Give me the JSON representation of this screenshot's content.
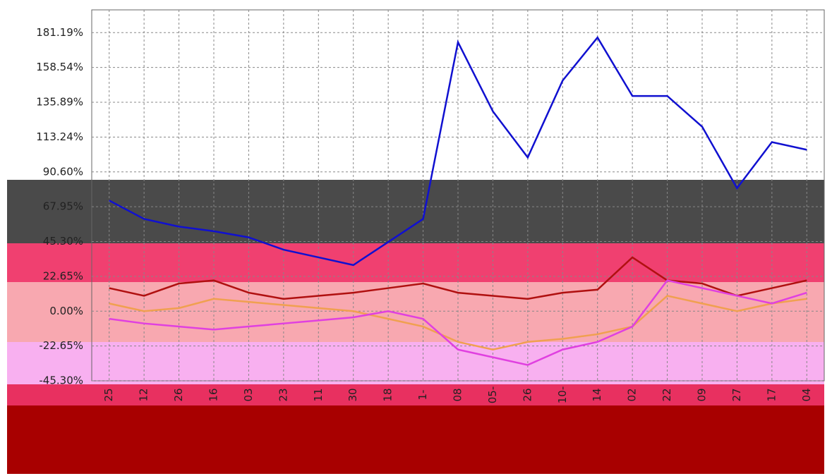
{
  "chart_data": {
    "type": "line",
    "categories": [
      "25",
      "12",
      "26",
      "16",
      "03",
      "23",
      "11",
      "30",
      "18",
      "1-",
      "08",
      "05-",
      "26",
      "10-",
      "14",
      "02",
      "22",
      "09",
      "27",
      "17",
      "04"
    ],
    "series": [
      {
        "color": "#1010d0",
        "values": [
          72,
          60,
          55,
          52,
          48,
          40,
          35,
          30,
          45,
          60,
          175,
          130,
          100,
          150,
          178,
          140,
          140,
          120,
          80,
          110,
          105
        ]
      },
      {
        "color": "#b01010",
        "values": [
          15,
          10,
          18,
          20,
          12,
          8,
          10,
          12,
          15,
          18,
          12,
          10,
          8,
          12,
          14,
          35,
          20,
          18,
          10,
          15,
          20
        ]
      },
      {
        "color": "#f0a050",
        "values": [
          5,
          0,
          2,
          8,
          6,
          4,
          2,
          0,
          -5,
          -10,
          -20,
          -25,
          -20,
          -18,
          -15,
          -10,
          10,
          5,
          0,
          5,
          8
        ]
      },
      {
        "color": "#e040e0",
        "values": [
          -5,
          -8,
          -10,
          -12,
          -10,
          -8,
          -6,
          -4,
          0,
          -5,
          -25,
          -30,
          -35,
          -25,
          -20,
          -10,
          20,
          15,
          10,
          5,
          12
        ]
      }
    ],
    "ylim": [
      -45.3,
      196
    ],
    "yticks": [
      {
        "value": 181.19,
        "label": "181.19%"
      },
      {
        "value": 158.54,
        "label": "158.54%"
      },
      {
        "value": 135.89,
        "label": "135.89%"
      },
      {
        "value": 113.24,
        "label": "113.24%"
      },
      {
        "value": 90.6,
        "label": "90.60%"
      },
      {
        "value": 67.95,
        "label": "67.95%"
      },
      {
        "value": 45.3,
        "label": "45.30%"
      },
      {
        "value": 22.65,
        "label": "22.65%"
      },
      {
        "value": 0,
        "label": "0.00%"
      },
      {
        "value": -22.65,
        "label": "-22.65%"
      },
      {
        "value": -45.3,
        "label": "-45.30%"
      }
    ],
    "grid": true
  }
}
